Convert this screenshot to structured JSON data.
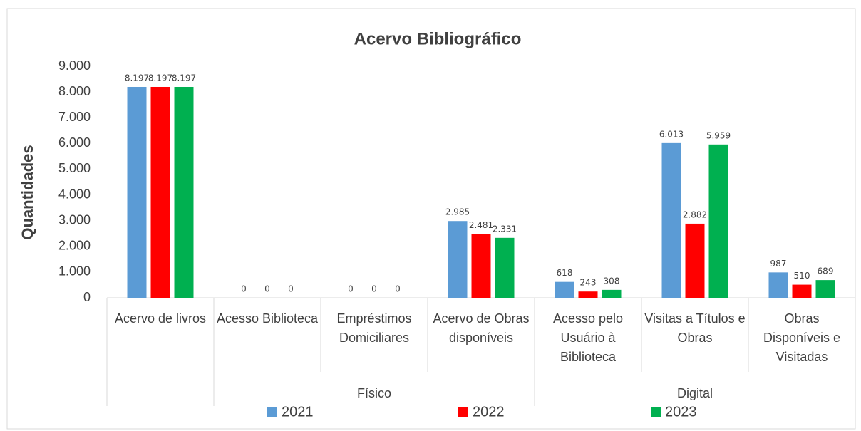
{
  "chart_data": {
    "type": "bar",
    "title": "Acervo Bibliográfico",
    "y_label": "Quantidades",
    "categories": [
      "Acervo de livros",
      "Acesso Biblioteca",
      "Empréstimos Domiciliares",
      "Acervo de Obras disponíveis",
      "Acesso pelo Usuário à Biblioteca",
      "Visitas a Títulos e Obras",
      "Obras Disponíveis e Visitadas"
    ],
    "category_groups": [
      null,
      "Físico",
      "Físico",
      "Físico",
      "Digital",
      "Digital",
      "Digital"
    ],
    "series": [
      {
        "name": "2021",
        "color": "#5b9bd5",
        "values": [
          8197,
          0,
          0,
          2985,
          618,
          6013,
          987
        ],
        "value_labels": [
          "8.197",
          "0",
          "0",
          "2.985",
          "618",
          "6.013",
          "987"
        ]
      },
      {
        "name": "2022",
        "color": "#ff0000",
        "values": [
          8197,
          0,
          0,
          2481,
          243,
          2882,
          510
        ],
        "value_labels": [
          "8.197",
          "0",
          "0",
          "2.481",
          "243",
          "2.882",
          "510"
        ]
      },
      {
        "name": "2023",
        "color": "#00b050",
        "values": [
          8197,
          0,
          0,
          2331,
          308,
          5959,
          689
        ],
        "value_labels": [
          "8.197",
          "0",
          "0",
          "2.331",
          "308",
          "5.959",
          "689"
        ]
      }
    ],
    "ylim": [
      0,
      9000
    ],
    "yticks": [
      0,
      {
        "value": 1000,
        "label": "1.000"
      },
      {
        "value": 2000,
        "label": "2.000"
      },
      {
        "value": 3000,
        "label": "3.000"
      },
      {
        "value": 4000,
        "label": "4.000"
      },
      {
        "value": 5000,
        "label": "5.000"
      },
      {
        "value": 6000,
        "label": "6.000"
      },
      {
        "value": 7000,
        "label": "7.000"
      },
      {
        "value": 8000,
        "label": "8.000"
      },
      {
        "value": 9000,
        "label": "9.000"
      }
    ],
    "grid": false,
    "legend": "bottom"
  }
}
